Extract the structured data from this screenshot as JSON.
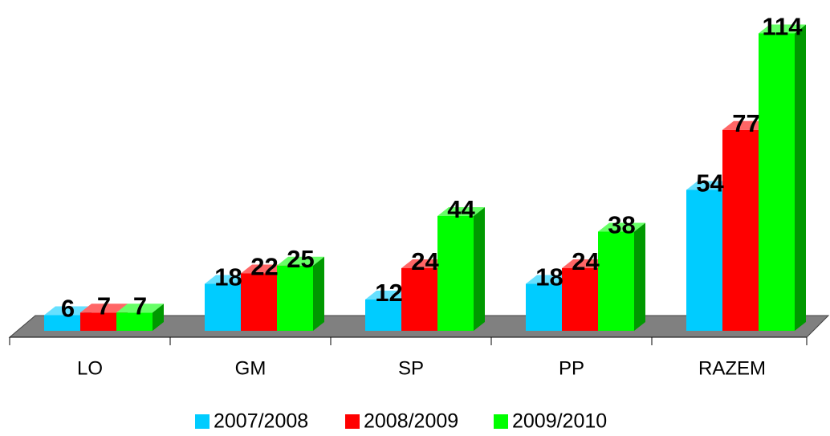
{
  "chart_data": {
    "type": "bar3d",
    "categories": [
      "LO",
      "GM",
      "SP",
      "PP",
      "RAZEM"
    ],
    "series": [
      {
        "name": "2007/2008",
        "color": "#00ccff",
        "values": [
          6,
          18,
          12,
          18,
          54
        ]
      },
      {
        "name": "2008/2009",
        "color": "#ff0000",
        "values": [
          7,
          22,
          24,
          24,
          77
        ]
      },
      {
        "name": "2009/2010",
        "color": "#00ff00",
        "values": [
          7,
          25,
          44,
          38,
          114
        ]
      }
    ],
    "legend": "bottom"
  }
}
